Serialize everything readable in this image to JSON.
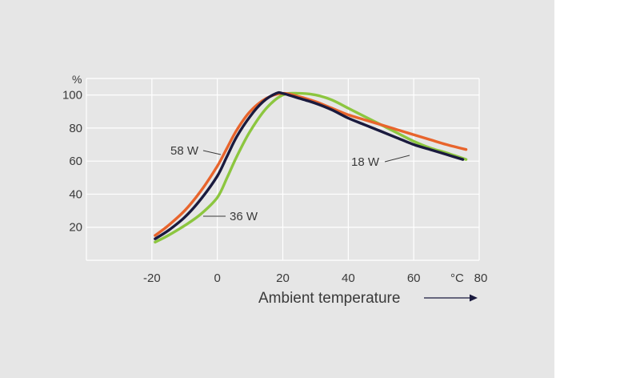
{
  "chart_data": {
    "type": "line",
    "title": "",
    "xlabel": "Ambient temperature",
    "ylabel": "%",
    "x_unit": "°C",
    "xlim": [
      -40,
      80
    ],
    "ylim": [
      0,
      110
    ],
    "x_ticks": [
      -20,
      0,
      20,
      40,
      60,
      80
    ],
    "y_ticks": [
      20,
      40,
      60,
      80,
      100
    ],
    "grid": true,
    "legend": "none",
    "colors": {
      "58 W": "#e8642c",
      "36 W": "#8cc63f",
      "18 W": "#1a1a3e",
      "panel": "#e6e6e6",
      "grid": "#ffffff"
    },
    "series": [
      {
        "name": "58 W",
        "color": "#e8642c",
        "points": [
          [
            -19,
            15
          ],
          [
            -15,
            21
          ],
          [
            -10,
            30
          ],
          [
            -5,
            42
          ],
          [
            0,
            57
          ],
          [
            3,
            68
          ],
          [
            6,
            79
          ],
          [
            10,
            90
          ],
          [
            15,
            98
          ],
          [
            20,
            101
          ],
          [
            25,
            99
          ],
          [
            30,
            96
          ],
          [
            35,
            92
          ],
          [
            40,
            88
          ],
          [
            45,
            85
          ],
          [
            50,
            82
          ],
          [
            55,
            79
          ],
          [
            60,
            76
          ],
          [
            65,
            73
          ],
          [
            70,
            70
          ],
          [
            76,
            67
          ]
        ]
      },
      {
        "name": "36 W",
        "color": "#8cc63f",
        "points": [
          [
            -19,
            11
          ],
          [
            -15,
            15
          ],
          [
            -10,
            21
          ],
          [
            -5,
            28
          ],
          [
            0,
            38
          ],
          [
            3,
            50
          ],
          [
            6,
            63
          ],
          [
            10,
            78
          ],
          [
            15,
            92
          ],
          [
            20,
            100
          ],
          [
            25,
            101
          ],
          [
            30,
            100
          ],
          [
            35,
            97
          ],
          [
            40,
            92
          ],
          [
            45,
            87
          ],
          [
            50,
            82
          ],
          [
            55,
            77
          ],
          [
            60,
            72
          ],
          [
            65,
            68
          ],
          [
            70,
            65
          ],
          [
            76,
            61
          ]
        ]
      },
      {
        "name": "18 W",
        "color": "#1a1a3e",
        "points": [
          [
            -19,
            13
          ],
          [
            -15,
            18
          ],
          [
            -10,
            26
          ],
          [
            -5,
            37
          ],
          [
            0,
            51
          ],
          [
            3,
            63
          ],
          [
            6,
            75
          ],
          [
            10,
            87
          ],
          [
            14,
            96
          ],
          [
            18,
            101
          ],
          [
            20,
            101
          ],
          [
            25,
            98
          ],
          [
            30,
            95
          ],
          [
            35,
            91
          ],
          [
            40,
            86
          ],
          [
            45,
            82
          ],
          [
            50,
            78
          ],
          [
            55,
            74
          ],
          [
            60,
            70
          ],
          [
            65,
            67
          ],
          [
            70,
            64
          ],
          [
            75,
            61
          ]
        ]
      }
    ],
    "annotations": [
      {
        "text": "58 W",
        "series": "58 W"
      },
      {
        "text": "36 W",
        "series": "36 W"
      },
      {
        "text": "18 W",
        "series": "18 W"
      }
    ]
  }
}
